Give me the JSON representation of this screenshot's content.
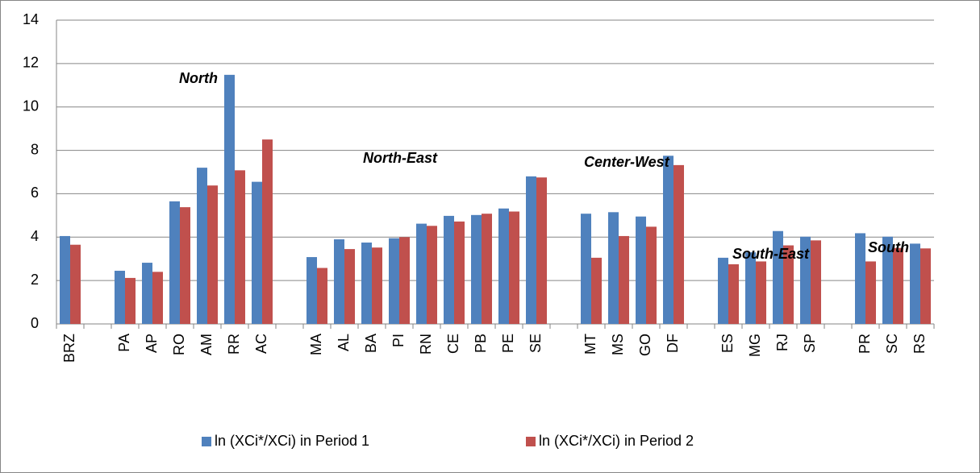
{
  "chart_data": {
    "type": "bar",
    "categories": [
      "BRZ",
      null,
      "PA",
      "AP",
      "RO",
      "AM",
      "RR",
      "AC",
      null,
      "MA",
      "AL",
      "BA",
      "PI",
      "RN",
      "CE",
      "PB",
      "PE",
      "SE",
      null,
      "MT",
      "MS",
      "GO",
      "DF",
      null,
      "ES",
      "MG",
      "RJ",
      "SP",
      null,
      "PR",
      "SC",
      "RS"
    ],
    "series": [
      {
        "name": "ln (XCi*/XCi) in Period 1",
        "color": "#4f81bd",
        "values": [
          4.05,
          null,
          2.45,
          2.82,
          5.65,
          7.2,
          11.48,
          6.55,
          null,
          3.08,
          3.9,
          3.75,
          3.95,
          4.62,
          4.98,
          5.02,
          5.32,
          6.8,
          null,
          5.08,
          5.15,
          4.95,
          7.75,
          null,
          3.05,
          3.3,
          4.28,
          4.02,
          null,
          4.18,
          4.02,
          3.7
        ]
      },
      {
        "name": "ln (XCi*/XCi) in Period 2",
        "color": "#c0504d",
        "values": [
          3.65,
          null,
          2.12,
          2.4,
          5.38,
          6.38,
          7.08,
          8.5,
          null,
          2.58,
          3.45,
          3.52,
          4.0,
          4.52,
          4.72,
          5.08,
          5.18,
          6.75,
          null,
          3.05,
          4.05,
          4.48,
          7.32,
          null,
          2.75,
          2.88,
          3.62,
          3.85,
          null,
          2.88,
          3.5,
          3.48
        ]
      }
    ],
    "annotations": [
      "North",
      "North-East",
      "Center-West",
      "South-East",
      "South"
    ],
    "ylim": [
      0,
      14
    ],
    "yticks": [
      0,
      2,
      4,
      6,
      8,
      10,
      12,
      14
    ],
    "grid": true,
    "legend": "bottom"
  }
}
